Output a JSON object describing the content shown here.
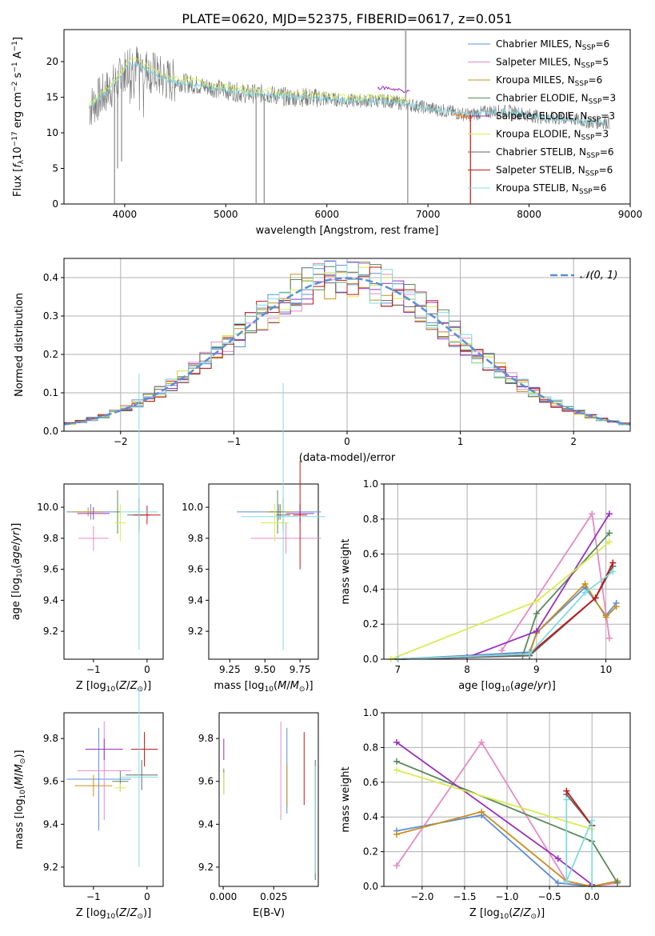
{
  "title": "PLATE=0620, MJD=52375, FIBERID=0617, z=0.051",
  "colors": {
    "chabrier_miles": "#5b8fd8",
    "salpeter_miles": "#e68ac2",
    "kroupa_miles": "#c8901e",
    "chabrier_elodie": "#5a8a5a",
    "salpeter_elodie": "#9b30c0",
    "kroupa_elodie": "#d8ec50",
    "chabrier_stelib": "#666666",
    "salpeter_stelib": "#c01818",
    "kroupa_stelib": "#80dce0",
    "gauss": "#5b8fd8",
    "orange": "#e87a2a",
    "grid": "#b0b0b0"
  },
  "chart_data": [
    {
      "type": "line",
      "xlabel": "wavelength [Angstrom, rest frame]",
      "ylabel": "Flux [f_λ10^-17 erg cm^-2 s^-1 A^-1]",
      "xlim": [
        3400,
        9000
      ],
      "ylim": [
        0,
        24.5
      ],
      "xticks": [
        "4000",
        "5000",
        "6000",
        "7000",
        "8000",
        "9000"
      ],
      "yticks": [
        "0",
        "5",
        "10",
        "15",
        "20"
      ],
      "legend_position": "upper right",
      "series": [
        {
          "label": "Chabrier MILES, N",
          "sub": "SSP",
          "suffix": "=6",
          "color_key": "chabrier_miles"
        },
        {
          "label": "Salpeter MILES, N",
          "sub": "SSP",
          "suffix": "=5",
          "color_key": "salpeter_miles"
        },
        {
          "label": "Kroupa MILES, N",
          "sub": "SSP",
          "suffix": "=6",
          "color_key": "kroupa_miles"
        },
        {
          "label": "Chabrier ELODIE, N",
          "sub": "SSP",
          "suffix": "=3",
          "color_key": "chabrier_elodie"
        },
        {
          "label": "Salpeter ELODIE, N",
          "sub": "SSP",
          "suffix": "=3",
          "color_key": "salpeter_elodie"
        },
        {
          "label": "Kroupa ELODIE, N",
          "sub": "SSP",
          "suffix": "=3",
          "color_key": "kroupa_elodie"
        },
        {
          "label": "Chabrier STELIB, N",
          "sub": "SSP",
          "suffix": "=6",
          "color_key": "chabrier_stelib"
        },
        {
          "label": "Salpeter STELIB, N",
          "sub": "SSP",
          "suffix": "=6",
          "color_key": "salpeter_stelib"
        },
        {
          "label": "Kroupa STELIB, N",
          "sub": "SSP",
          "suffix": "=6",
          "color_key": "kroupa_stelib"
        }
      ],
      "continuum": [
        [
          3650,
          13.5
        ],
        [
          3800,
          15.5
        ],
        [
          3950,
          17.5
        ],
        [
          4050,
          20.0
        ],
        [
          4200,
          19.0
        ],
        [
          4400,
          17.5
        ],
        [
          4600,
          17.0
        ],
        [
          4800,
          16.5
        ],
        [
          5000,
          16.0
        ],
        [
          5200,
          15.5
        ],
        [
          5400,
          15.5
        ],
        [
          5600,
          15.0
        ],
        [
          5800,
          15.0
        ],
        [
          6000,
          14.8
        ],
        [
          6200,
          14.5
        ],
        [
          6400,
          14.5
        ],
        [
          6600,
          14.5
        ],
        [
          6800,
          14.0
        ],
        [
          7000,
          13.5
        ],
        [
          7200,
          13.0
        ],
        [
          7400,
          12.5
        ],
        [
          7600,
          13.0
        ],
        [
          7800,
          13.0
        ],
        [
          8000,
          12.5
        ],
        [
          8200,
          12.0
        ],
        [
          8400,
          12.0
        ],
        [
          8600,
          11.5
        ],
        [
          8800,
          11.5
        ]
      ],
      "spikes": [
        [
          3900,
          0
        ],
        [
          3930,
          5
        ],
        [
          3970,
          6
        ],
        [
          5300,
          0
        ],
        [
          5380,
          0
        ],
        [
          6800,
          0
        ],
        [
          7420,
          0
        ]
      ]
    },
    {
      "type": "step",
      "xlabel": "(data-model)/error",
      "ylabel": "Normed distribution",
      "xlim": [
        -2.5,
        2.5
      ],
      "ylim": [
        0,
        0.45
      ],
      "xticks": [
        "−2",
        "−1",
        "0",
        "1",
        "2"
      ],
      "yticks": [
        "0.0",
        "0.1",
        "0.2",
        "0.3",
        "0.4"
      ],
      "grid": true,
      "bin_width": 0.1,
      "legend": "𝒩(0, 1)",
      "legend_position": "upper right"
    },
    {
      "type": "errorbar",
      "xlabel": "Z [log10(Z/Z⊙)]",
      "ylabel": "age  [log10(age/yr)]",
      "xlim": [
        -1.55,
        0.3
      ],
      "ylim": [
        9.02,
        10.15
      ],
      "xticks": [
        -1,
        0
      ],
      "xticklabels": [
        "−1",
        "0"
      ],
      "yticks": [
        9.2,
        9.4,
        9.6,
        9.8,
        10.0
      ],
      "yticklabels": [
        "9.2",
        "9.4",
        "9.6",
        "9.8",
        "10.0"
      ],
      "points": [
        {
          "c": "chabrier_miles",
          "x": -1.05,
          "xe": 0.45,
          "y": 9.97,
          "ye": 0.05
        },
        {
          "c": "salpeter_miles",
          "x": -1.0,
          "xe": 0.28,
          "y": 9.8,
          "ye": 0.08
        },
        {
          "c": "kroupa_miles",
          "x": -1.1,
          "xe": 0.3,
          "y": 9.97,
          "ye": 0.03
        },
        {
          "c": "chabrier_elodie",
          "x": -0.55,
          "xe": 0.05,
          "y": 9.97,
          "ye": 0.14
        },
        {
          "c": "salpeter_elodie",
          "x": -1.0,
          "xe": 0.3,
          "y": 9.96,
          "ye": 0.04
        },
        {
          "c": "kroupa_elodie",
          "x": -0.5,
          "xe": 0.1,
          "y": 9.9,
          "ye": 0.12
        },
        {
          "c": "chabrier_stelib",
          "x": -0.15,
          "xe": 0.22,
          "y": 9.95,
          "ye": 0.11
        },
        {
          "c": "salpeter_stelib",
          "x": 0.0,
          "xe": 0.25,
          "y": 9.95,
          "ye": 0.06
        },
        {
          "c": "kroupa_stelib",
          "x": -0.15,
          "xe": 0.35,
          "y": 9.97,
          "ye": 0.89
        }
      ]
    },
    {
      "type": "errorbar",
      "xlabel": "mass [log10(M/M⊙)]",
      "ylabel": "",
      "xlim": [
        9.1,
        9.88
      ],
      "ylim": [
        9.02,
        10.15
      ],
      "xticks": [
        9.25,
        9.5,
        9.75
      ],
      "xticklabels": [
        "9.25",
        "9.50",
        "9.75"
      ],
      "yticks": [
        9.2,
        9.4,
        9.6,
        9.8,
        10.0
      ],
      "yticklabels": [
        "9.2",
        "9.4",
        "9.6",
        "9.8",
        "10.0"
      ],
      "points": [
        {
          "c": "chabrier_miles",
          "x": 9.6,
          "xe": 0.3,
          "y": 9.97,
          "ye": 0.05
        },
        {
          "c": "salpeter_miles",
          "x": 9.65,
          "xe": 0.25,
          "y": 9.8,
          "ye": 0.1
        },
        {
          "c": "kroupa_miles",
          "x": 9.61,
          "xe": 0.1,
          "y": 9.97,
          "ye": 0.05
        },
        {
          "c": "chabrier_elodie",
          "x": 9.59,
          "xe": 0.05,
          "y": 9.97,
          "ye": 0.14
        },
        {
          "c": "salpeter_elodie",
          "x": 9.75,
          "xe": 0.1,
          "y": 9.96,
          "ye": 0.06
        },
        {
          "c": "kroupa_elodie",
          "x": 9.57,
          "xe": 0.1,
          "y": 9.9,
          "ye": 0.12
        },
        {
          "c": "chabrier_stelib",
          "x": 9.63,
          "xe": 0.05,
          "y": 9.95,
          "ye": 0.11
        },
        {
          "c": "salpeter_stelib",
          "x": 9.75,
          "xe": 0.05,
          "y": 9.95,
          "ye": 0.35
        },
        {
          "c": "kroupa_stelib",
          "x": 9.63,
          "xe": 0.3,
          "y": 9.94,
          "ye": 0.86
        }
      ]
    },
    {
      "type": "line",
      "xlabel": "age  [log10(age/yr)]",
      "ylabel": "mass weight",
      "xlim": [
        6.8,
        10.35
      ],
      "ylim": [
        0,
        1.0
      ],
      "xticks": [
        7,
        8,
        9,
        10
      ],
      "xticklabels": [
        "7",
        "8",
        "9",
        "10"
      ],
      "yticks": [
        0,
        0.2,
        0.4,
        0.6,
        0.8,
        1.0
      ],
      "yticklabels": [
        "0.0",
        "0.2",
        "0.4",
        "0.6",
        "0.8",
        "1.0"
      ],
      "grid": true,
      "series": [
        {
          "c": "chabrier_miles",
          "x": [
            7.0,
            8.9,
            9.0,
            9.7,
            10.0,
            10.15
          ],
          "y": [
            0.0,
            0.04,
            0.15,
            0.41,
            0.25,
            0.32
          ]
        },
        {
          "c": "salpeter_miles",
          "x": [
            8.5,
            9.8,
            10.05
          ],
          "y": [
            0.05,
            0.83,
            0.12
          ]
        },
        {
          "c": "kroupa_miles",
          "x": [
            7.0,
            8.9,
            9.0,
            9.7,
            10.0,
            10.15
          ],
          "y": [
            0.0,
            0.03,
            0.15,
            0.43,
            0.24,
            0.3
          ]
        },
        {
          "c": "chabrier_elodie",
          "x": [
            7.0,
            8.8,
            9.0,
            10.05
          ],
          "y": [
            0.0,
            0.02,
            0.26,
            0.72
          ]
        },
        {
          "c": "salpeter_elodie",
          "x": [
            7.0,
            8.0,
            9.0,
            10.05
          ],
          "y": [
            0.0,
            0.01,
            0.16,
            0.83
          ]
        },
        {
          "c": "kroupa_elodie",
          "x": [
            6.9,
            9.0,
            10.05
          ],
          "y": [
            0.0,
            0.33,
            0.67
          ]
        },
        {
          "c": "chabrier_stelib",
          "x": [
            7.0,
            8.9,
            9.85,
            10.1
          ],
          "y": [
            0.0,
            0.02,
            0.35,
            0.53
          ]
        },
        {
          "c": "salpeter_stelib",
          "x": [
            7.0,
            8.9,
            9.85,
            10.1
          ],
          "y": [
            0.0,
            0.03,
            0.35,
            0.55
          ]
        },
        {
          "c": "kroupa_stelib",
          "x": [
            7.0,
            8.9,
            9.7,
            10.1
          ],
          "y": [
            0.0,
            0.03,
            0.38,
            0.5
          ]
        }
      ]
    },
    {
      "type": "errorbar",
      "xlabel": "Z [log10(Z/Z⊙)]",
      "ylabel": "mass [log10(M/M⊙)]",
      "xlim": [
        -1.55,
        0.3
      ],
      "ylim": [
        9.11,
        9.92
      ],
      "xticks": [
        -1,
        0
      ],
      "xticklabels": [
        "−1",
        "0"
      ],
      "yticks": [
        9.2,
        9.4,
        9.6,
        9.8
      ],
      "yticklabels": [
        "9.2",
        "9.4",
        "9.6",
        "9.8"
      ],
      "points": [
        {
          "c": "chabrier_miles",
          "x": -0.9,
          "xe": 0.6,
          "y": 9.61,
          "ye": 0.24
        },
        {
          "c": "salpeter_miles",
          "x": -0.8,
          "xe": 0.5,
          "y": 9.65,
          "ye": 0.23
        },
        {
          "c": "kroupa_miles",
          "x": -1.0,
          "xe": 0.35,
          "y": 9.58,
          "ye": 0.05
        },
        {
          "c": "chabrier_elodie",
          "x": -0.5,
          "xe": 0.15,
          "y": 9.6,
          "ye": 0.05
        },
        {
          "c": "salpeter_elodie",
          "x": -0.8,
          "xe": 0.35,
          "y": 9.75,
          "ye": 0.05
        },
        {
          "c": "kroupa_elodie",
          "x": -0.5,
          "xe": 0.1,
          "y": 9.57,
          "ye": 0.02
        },
        {
          "c": "chabrier_stelib",
          "x": -0.1,
          "xe": 0.3,
          "y": 9.63,
          "ye": 0.07
        },
        {
          "c": "salpeter_stelib",
          "x": -0.05,
          "xe": 0.25,
          "y": 9.75,
          "ye": 0.08
        },
        {
          "c": "kroupa_stelib",
          "x": -0.15,
          "xe": 0.35,
          "y": 9.62,
          "ye": 0.42
        }
      ]
    },
    {
      "type": "errorbar",
      "xlabel": "E(B-V)",
      "ylabel": "",
      "xlim": [
        -0.002,
        0.047
      ],
      "ylim": [
        9.11,
        9.92
      ],
      "xticks": [
        0.0,
        0.025
      ],
      "xticklabels": [
        "0.000",
        "0.025"
      ],
      "yticks": [
        9.2,
        9.4,
        9.6,
        9.8
      ],
      "yticklabels": [
        "9.2",
        "9.4",
        "9.6",
        "9.8"
      ],
      "points": [
        {
          "c": "chabrier_miles",
          "x": 0.0315,
          "xe": 0,
          "y": 9.65,
          "ye": 0.2
        },
        {
          "c": "salpeter_miles",
          "x": 0.0285,
          "xe": 0,
          "y": 9.65,
          "ye": 0.23
        },
        {
          "c": "kroupa_miles",
          "x": 0.0315,
          "xe": 0,
          "y": 9.58,
          "ye": 0.1
        },
        {
          "c": "chabrier_elodie",
          "x": 0.0003,
          "xe": 0,
          "y": 9.6,
          "ye": 0.06
        },
        {
          "c": "salpeter_elodie",
          "x": 0.0003,
          "xe": 0,
          "y": 9.75,
          "ye": 0.05
        },
        {
          "c": "kroupa_elodie",
          "x": 0.0003,
          "xe": 0,
          "y": 9.59,
          "ye": 0.05
        },
        {
          "c": "chabrier_stelib",
          "x": 0.0455,
          "xe": 0,
          "y": 9.42,
          "ye": 0.28
        },
        {
          "c": "salpeter_stelib",
          "x": 0.04,
          "xe": 0,
          "y": 9.66,
          "ye": 0.17
        },
        {
          "c": "kroupa_stelib",
          "x": 0.0455,
          "xe": 0,
          "y": 9.42,
          "ye": 0.25
        }
      ]
    },
    {
      "type": "line",
      "xlabel": "Z [log10(Z/Z⊙)]",
      "ylabel": "mass weight",
      "xlim": [
        -2.45,
        0.45
      ],
      "ylim": [
        0,
        1.0
      ],
      "xticks": [
        -2,
        -1.5,
        -1,
        -0.5,
        0
      ],
      "xticklabels": [
        "−2.0",
        "−1.5",
        "−1.0",
        "−0.5",
        "0.0"
      ],
      "yticks": [
        0,
        0.2,
        0.4,
        0.6,
        0.8,
        1.0
      ],
      "yticklabels": [
        "0.0",
        "0.2",
        "0.4",
        "0.6",
        "0.8",
        "1.0"
      ],
      "grid": true,
      "series": [
        {
          "c": "chabrier_miles",
          "x": [
            -2.3,
            -1.3,
            -0.4,
            0.0,
            0.3
          ],
          "y": [
            0.32,
            0.41,
            0.02,
            0.0,
            0.03
          ]
        },
        {
          "c": "salpeter_miles",
          "x": [
            -2.3,
            -1.3,
            -0.3,
            0.0,
            0.3
          ],
          "y": [
            0.12,
            0.83,
            0.03,
            0.0,
            0.02
          ]
        },
        {
          "c": "kroupa_miles",
          "x": [
            -2.3,
            -1.3,
            -0.3,
            0.0,
            0.3
          ],
          "y": [
            0.3,
            0.43,
            0.03,
            0.0,
            0.03
          ]
        },
        {
          "c": "chabrier_elodie",
          "x": [
            -2.3,
            0.0,
            0.3
          ],
          "y": [
            0.72,
            0.26,
            0.02
          ]
        },
        {
          "c": "salpeter_elodie",
          "x": [
            -2.3,
            -0.4,
            0.0
          ],
          "y": [
            0.83,
            0.16,
            0.01
          ]
        },
        {
          "c": "kroupa_elodie",
          "x": [
            -2.3,
            0.0
          ],
          "y": [
            0.67,
            0.33
          ]
        },
        {
          "c": "chabrier_stelib",
          "x": [
            -0.3,
            0.0
          ],
          "y": [
            0.53,
            0.35
          ]
        },
        {
          "c": "salpeter_stelib",
          "x": [
            -0.3,
            0.0
          ],
          "y": [
            0.55,
            0.35
          ]
        },
        {
          "c": "kroupa_stelib",
          "x": [
            -0.3,
            -0.3,
            0.0,
            0.0
          ],
          "y": [
            0.5,
            0.03,
            0.38,
            0.0
          ]
        }
      ]
    }
  ]
}
